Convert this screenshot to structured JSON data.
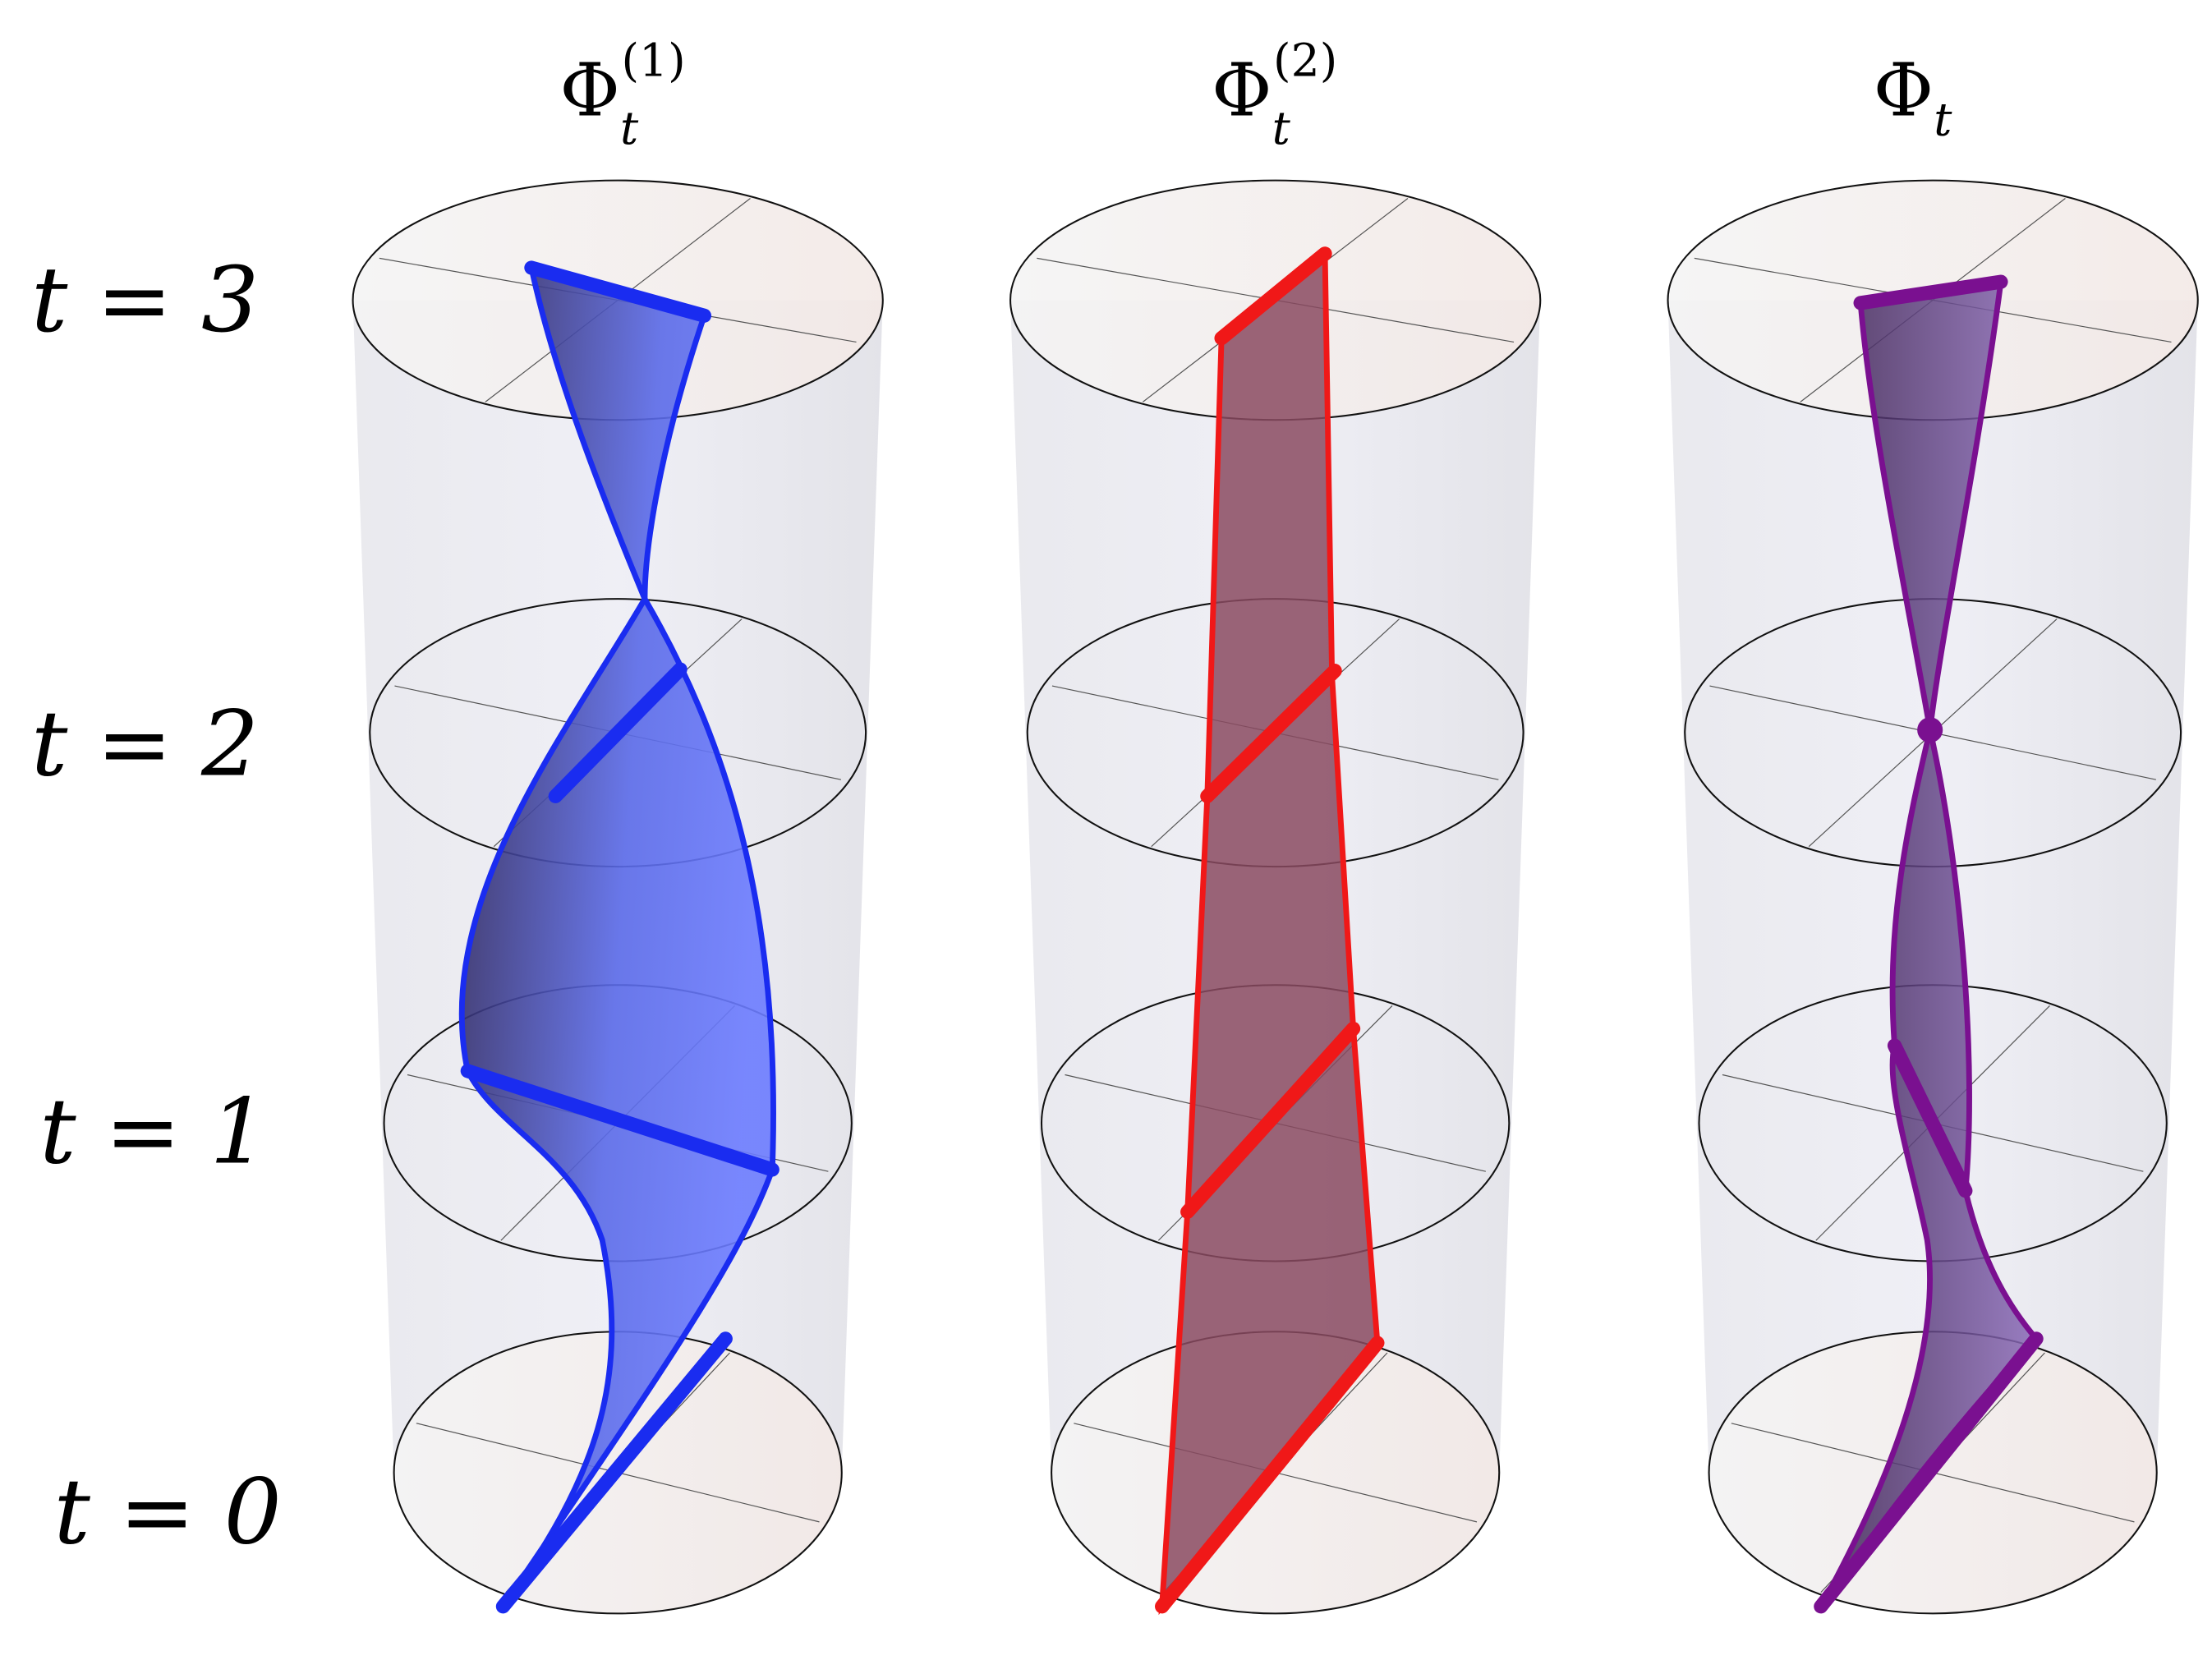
{
  "columns": [
    {
      "base": "Φ",
      "sub": "t",
      "sup": "(1)"
    },
    {
      "base": "Φ",
      "sub": "t",
      "sup": "(2)"
    },
    {
      "base": "Φ",
      "sub": "t"
    }
  ],
  "rows": [
    "t = 3",
    "t = 2",
    "t = 1",
    "t = 0"
  ]
}
